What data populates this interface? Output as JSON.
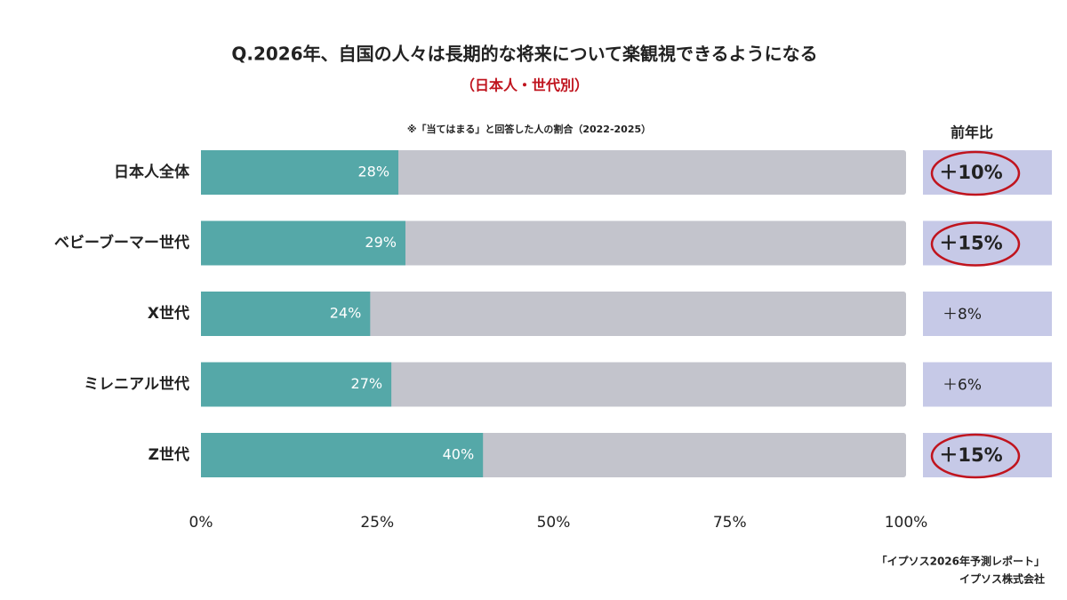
{
  "chart_data": {
    "type": "bar",
    "orientation": "horizontal",
    "title": "Q.2026年、自国の人々は長期的な将来について楽観視できるようになる",
    "subtitle": "（日本人・世代別）",
    "note": "※「当てはまる」と回答した人の割合（2022-2025）",
    "categories": [
      "日本人全体",
      "ベビーブーマー世代",
      "X世代",
      "ミレニアル世代",
      "Z世代"
    ],
    "values": [
      28,
      29,
      24,
      27,
      40
    ],
    "value_labels": [
      "28%",
      "29%",
      "24%",
      "27%",
      "40%"
    ],
    "color": "#55a8a8",
    "track_color": "#c3c4cc",
    "xlim": [
      0,
      100
    ],
    "xticks": [
      {
        "value": 0,
        "label": "0%"
      },
      {
        "value": 25,
        "label": "25%"
      },
      {
        "value": 50,
        "label": "50%"
      },
      {
        "value": 75,
        "label": "75%"
      },
      {
        "value": 100,
        "label": "100%"
      }
    ],
    "yoy": {
      "header": "前年比",
      "values": [
        10,
        15,
        8,
        6,
        15
      ],
      "value_labels": [
        "＋10%",
        "＋15%",
        "＋8%",
        "＋6%",
        "＋15%"
      ],
      "highlight": [
        true,
        true,
        false,
        false,
        true
      ],
      "color": "#c6c9e7",
      "highlight_color": "#c0141e"
    },
    "source": [
      "「イプソス2026年予測レポート」",
      "イプソス株式会社"
    ]
  }
}
